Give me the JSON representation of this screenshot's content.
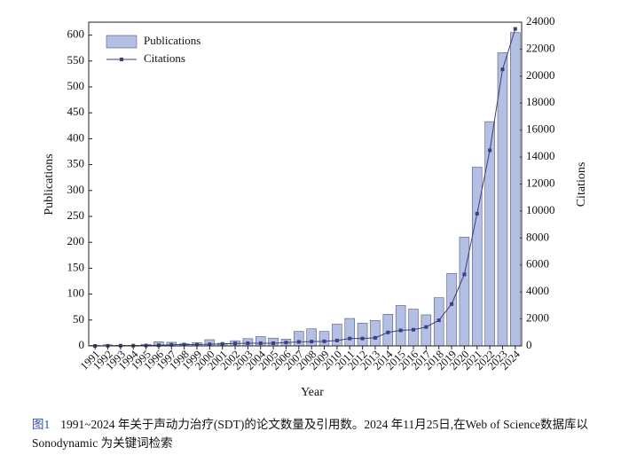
{
  "chart_data": {
    "type": "bar_line",
    "x_label": "Year",
    "y_label": "Publications",
    "y2_label": "Citations",
    "categories": [
      "1991",
      "1992",
      "1993",
      "1994",
      "1995",
      "1996",
      "1997",
      "1998",
      "1999",
      "2000",
      "2001",
      "2002",
      "2003",
      "2004",
      "2005",
      "2006",
      "2007",
      "2008",
      "2009",
      "2010",
      "2011",
      "2012",
      "2013",
      "2014",
      "2015",
      "2016",
      "2017",
      "2018",
      "2019",
      "2020",
      "2021",
      "2022",
      "2023",
      "2024"
    ],
    "series": [
      {
        "name": "Publications",
        "color": "#b3bfe3",
        "values": [
          1,
          2,
          1,
          1,
          3,
          8,
          7,
          4,
          6,
          12,
          5,
          10,
          14,
          18,
          15,
          13,
          28,
          33,
          28,
          42,
          53,
          44,
          49,
          61,
          78,
          71,
          60,
          93,
          140,
          210,
          345,
          433,
          566,
          605
        ]
      },
      {
        "name": "Citations",
        "color": "#3b3f7c",
        "axis": "y2",
        "values": [
          0,
          10,
          20,
          20,
          30,
          50,
          80,
          100,
          100,
          120,
          150,
          180,
          200,
          200,
          200,
          250,
          300,
          320,
          340,
          400,
          550,
          550,
          600,
          1000,
          1150,
          1200,
          1400,
          1900,
          3100,
          5300,
          9800,
          14500,
          20500,
          23500
        ]
      }
    ],
    "ylim": [
      0,
      625
    ],
    "yticks": [
      0,
      50,
      100,
      150,
      200,
      250,
      300,
      350,
      400,
      450,
      500,
      550,
      600
    ],
    "y2lim": [
      0,
      24000
    ],
    "y2ticks": [
      0,
      2000,
      4000,
      6000,
      8000,
      10000,
      12000,
      14000,
      16000,
      18000,
      20000,
      22000,
      24000
    ],
    "legend": "upper-left"
  },
  "caption": {
    "label": "图1",
    "text": "1991~2024 年关于声动力治疗(SDT)的论文数量及引用数。2024 年11月25日,在Web of Science数据库以 Sonodynamic 为关键词检索"
  }
}
